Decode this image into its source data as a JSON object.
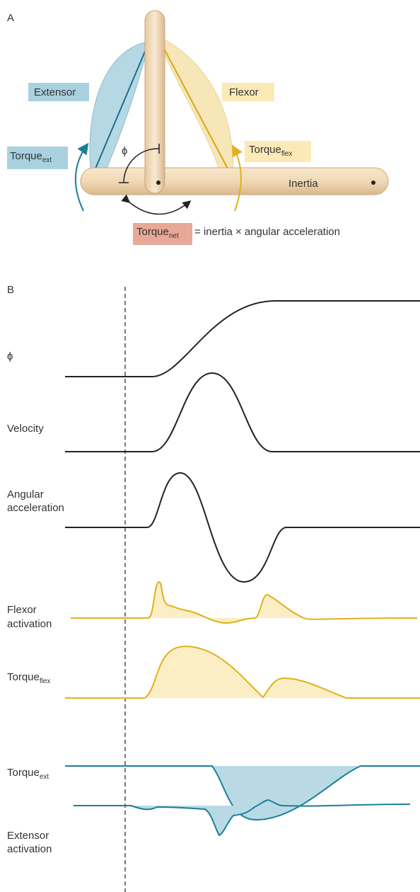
{
  "panel_a": {
    "label": "A",
    "extensor": "Extensor",
    "flexor": "Flexor",
    "torque_ext": {
      "base": "Torque",
      "sub": "ext"
    },
    "torque_flex": {
      "base": "Torque",
      "sub": "flex"
    },
    "phi": "ϕ",
    "inertia": "Inertia",
    "torque_net": {
      "base": "Torque",
      "sub": "net"
    },
    "equation": "= inertia × angular acceleration"
  },
  "panel_b": {
    "label": "B",
    "phi": "ϕ",
    "velocity": "Velocity",
    "acceleration": [
      "Angular",
      "acceleration"
    ],
    "flexor_activation": [
      "Flexor",
      "activation"
    ],
    "torque_flex": {
      "base": "Torque",
      "sub": "flex"
    },
    "torque_ext": {
      "base": "Torque",
      "sub": "ext"
    },
    "extensor_activation": [
      "Extensor",
      "activation"
    ]
  }
}
